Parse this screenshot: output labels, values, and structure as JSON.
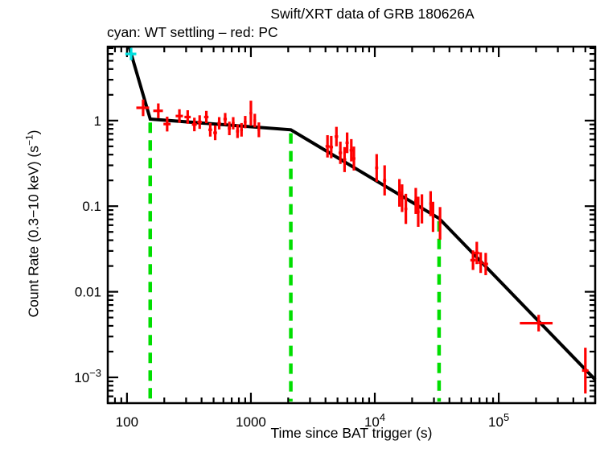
{
  "figure": {
    "title": "Swift/XRT data of GRB 180626A",
    "subtitle": "cyan: WT settling – red: PC",
    "xlabel": "Time since BAT trigger (s)",
    "ylabel_parts": {
      "prefix": "Count Rate (0.3−10 keV) (s",
      "sup": "−1",
      "suffix": ")"
    }
  },
  "chart_data": {
    "type": "scatter",
    "title": "Swift/XRT data of GRB 180626A",
    "subtitle": "cyan: WT settling – red: PC",
    "xlabel": "Time since BAT trigger (s)",
    "ylabel": "Count Rate (0.3−10 keV) (s−1)",
    "x_scale": "log",
    "y_scale": "log",
    "xlim": [
      70,
      600000
    ],
    "ylim": [
      0.0005,
      7.3
    ],
    "grid": false,
    "legend_position": "subtitle-line",
    "colors": {
      "pc_data": "#FF0000",
      "wt_data": "#00E0E0",
      "fit_line": "#000000",
      "break_line": "#00DE00",
      "background": "#FFFFFF",
      "text": "#000000"
    },
    "x_ticks": [
      {
        "value": 100,
        "base": "100",
        "exp": ""
      },
      {
        "value": 1000,
        "base": "1000",
        "exp": ""
      },
      {
        "value": 10000,
        "base": "10",
        "exp": "4"
      },
      {
        "value": 100000,
        "base": "10",
        "exp": "5"
      }
    ],
    "y_ticks": [
      {
        "value": 1,
        "base": "1",
        "exp": ""
      },
      {
        "value": 0.1,
        "base": "0.1",
        "exp": ""
      },
      {
        "value": 0.01,
        "base": "0.01",
        "exp": ""
      },
      {
        "value": 0.001,
        "base": "10",
        "exp": "−3"
      }
    ],
    "fit_line": [
      [
        104,
        7.29
      ],
      [
        154,
        1.04
      ],
      [
        2100,
        0.78
      ],
      [
        33000,
        0.072
      ],
      [
        600000,
        0.00094
      ]
    ],
    "break_lines": [
      {
        "t": 154,
        "top": 0.95
      },
      {
        "t": 2100,
        "top": 0.71
      },
      {
        "t": 33000,
        "top": 0.067
      }
    ],
    "columns": [
      "time_s",
      "time_err_s",
      "rate",
      "rate_err_factor"
    ],
    "series": [
      {
        "name": "WT settling",
        "mode": "WT",
        "color_key": "wt_data",
        "points": [
          [
            108,
            11,
            6.0,
            1.18
          ]
        ]
      },
      {
        "name": "PC",
        "mode": "PC",
        "color_key": "pc_data",
        "points": [
          [
            135,
            16,
            1.41,
            1.25
          ],
          [
            179,
            16,
            1.3,
            1.22
          ],
          [
            211,
            14,
            0.91,
            1.22
          ],
          [
            265,
            18,
            1.13,
            1.2
          ],
          [
            309,
            18,
            1.1,
            1.2
          ],
          [
            350,
            16,
            0.9,
            1.2
          ],
          [
            386,
            16,
            0.96,
            1.2
          ],
          [
            437,
            18,
            1.1,
            1.18
          ],
          [
            470,
            16,
            0.78,
            1.2
          ],
          [
            515,
            18,
            0.72,
            1.22
          ],
          [
            555,
            18,
            0.93,
            1.18
          ],
          [
            620,
            20,
            1.04,
            1.18
          ],
          [
            670,
            20,
            0.81,
            1.2
          ],
          [
            720,
            20,
            0.93,
            1.18
          ],
          [
            780,
            22,
            0.75,
            1.2
          ],
          [
            840,
            22,
            0.78,
            1.2
          ],
          [
            900,
            24,
            0.96,
            1.18
          ],
          [
            1000,
            26,
            1.22,
            1.4
          ],
          [
            1075,
            26,
            1.0,
            1.2
          ],
          [
            1160,
            28,
            0.78,
            1.22
          ],
          [
            4150,
            150,
            0.5,
            1.35
          ],
          [
            4450,
            150,
            0.49,
            1.35
          ],
          [
            4900,
            160,
            0.65,
            1.3
          ],
          [
            5270,
            170,
            0.42,
            1.35
          ],
          [
            5700,
            180,
            0.35,
            1.4
          ],
          [
            5980,
            180,
            0.55,
            1.32
          ],
          [
            6460,
            200,
            0.45,
            1.35
          ],
          [
            6780,
            200,
            0.36,
            1.38
          ],
          [
            10350,
            300,
            0.28,
            1.45
          ],
          [
            12000,
            350,
            0.2,
            1.5
          ],
          [
            15800,
            450,
            0.143,
            1.45
          ],
          [
            16600,
            450,
            0.124,
            1.45
          ],
          [
            17800,
            500,
            0.093,
            1.5
          ],
          [
            21400,
            600,
            0.115,
            1.42
          ],
          [
            22400,
            600,
            0.086,
            1.5
          ],
          [
            24000,
            650,
            0.093,
            1.48
          ],
          [
            28200,
            700,
            0.107,
            1.4
          ],
          [
            29500,
            700,
            0.075,
            1.5
          ],
          [
            33600,
            800,
            0.063,
            1.55
          ],
          [
            62000,
            3000,
            0.0234,
            1.3
          ],
          [
            66500,
            3000,
            0.0284,
            1.35
          ],
          [
            71500,
            3000,
            0.0219,
            1.32
          ],
          [
            78500,
            3500,
            0.0211,
            1.35
          ],
          [
            210000,
            62000,
            0.0043,
            1.25
          ],
          [
            500000,
            30000,
            0.0012,
            1.85
          ]
        ]
      }
    ]
  }
}
